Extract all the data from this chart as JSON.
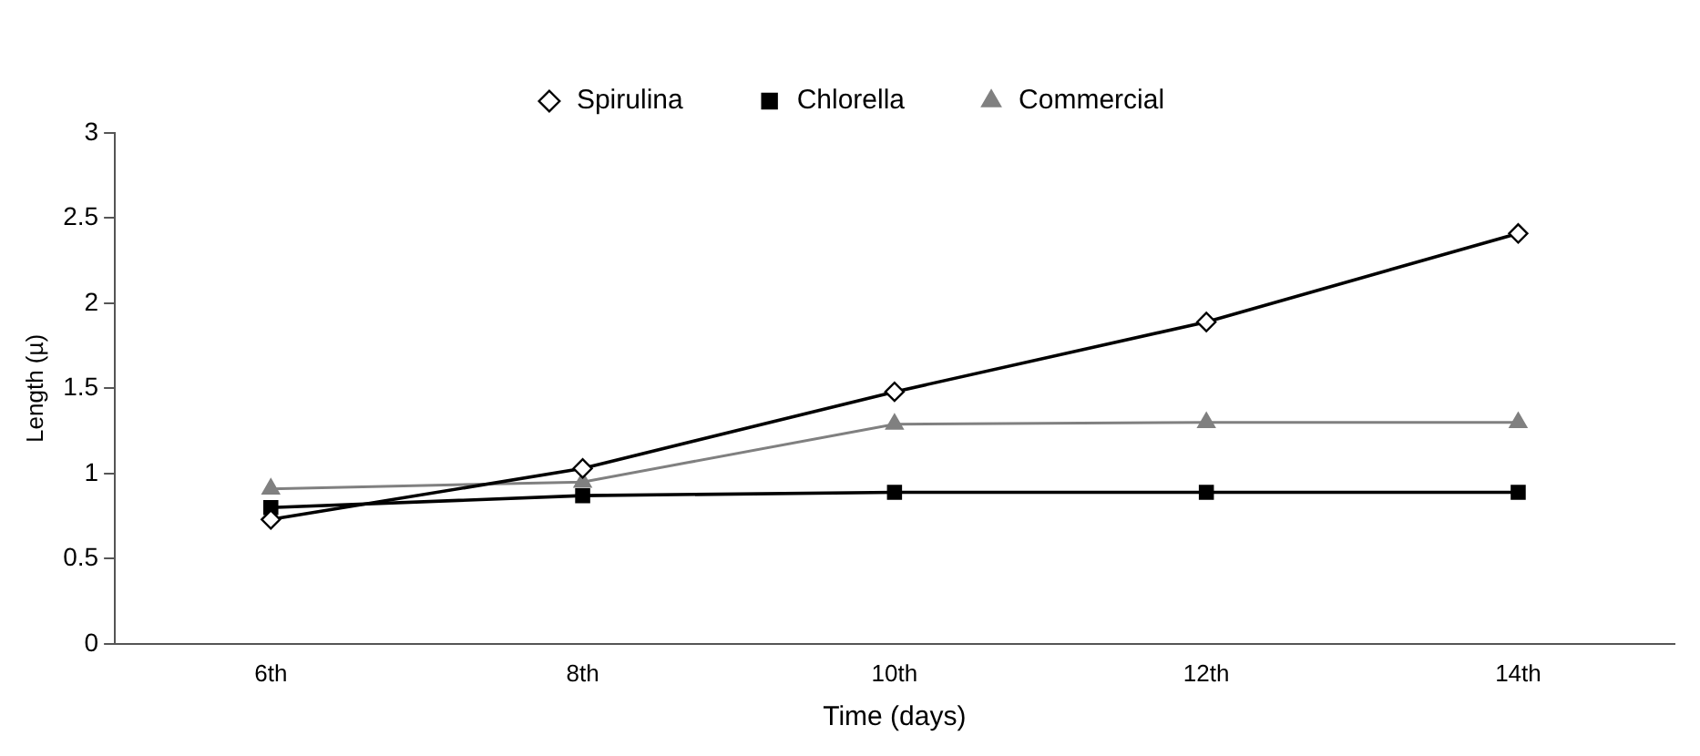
{
  "chart_data": {
    "type": "line",
    "xlabel": "Time (days)",
    "ylabel": "Length (µ)",
    "categories": [
      "6th",
      "8th",
      "10th",
      "12th",
      "14th"
    ],
    "series": [
      {
        "name": "Spirulina",
        "color": "#000000",
        "marker": "diamond",
        "values": [
          0.73,
          1.03,
          1.48,
          1.89,
          2.41
        ]
      },
      {
        "name": "Chlorella",
        "color": "#000000",
        "marker": "square",
        "values": [
          0.8,
          0.87,
          0.89,
          0.89,
          0.89
        ]
      },
      {
        "name": "Commercial",
        "color": "#808080",
        "marker": "triangle",
        "values": [
          0.91,
          0.95,
          1.29,
          1.3,
          1.3
        ]
      }
    ],
    "ylim": [
      0,
      3
    ],
    "yticks": [
      0,
      0.5,
      1,
      1.5,
      2,
      2.5,
      3
    ],
    "grid": false,
    "legend": "top",
    "line_style": "solid"
  }
}
